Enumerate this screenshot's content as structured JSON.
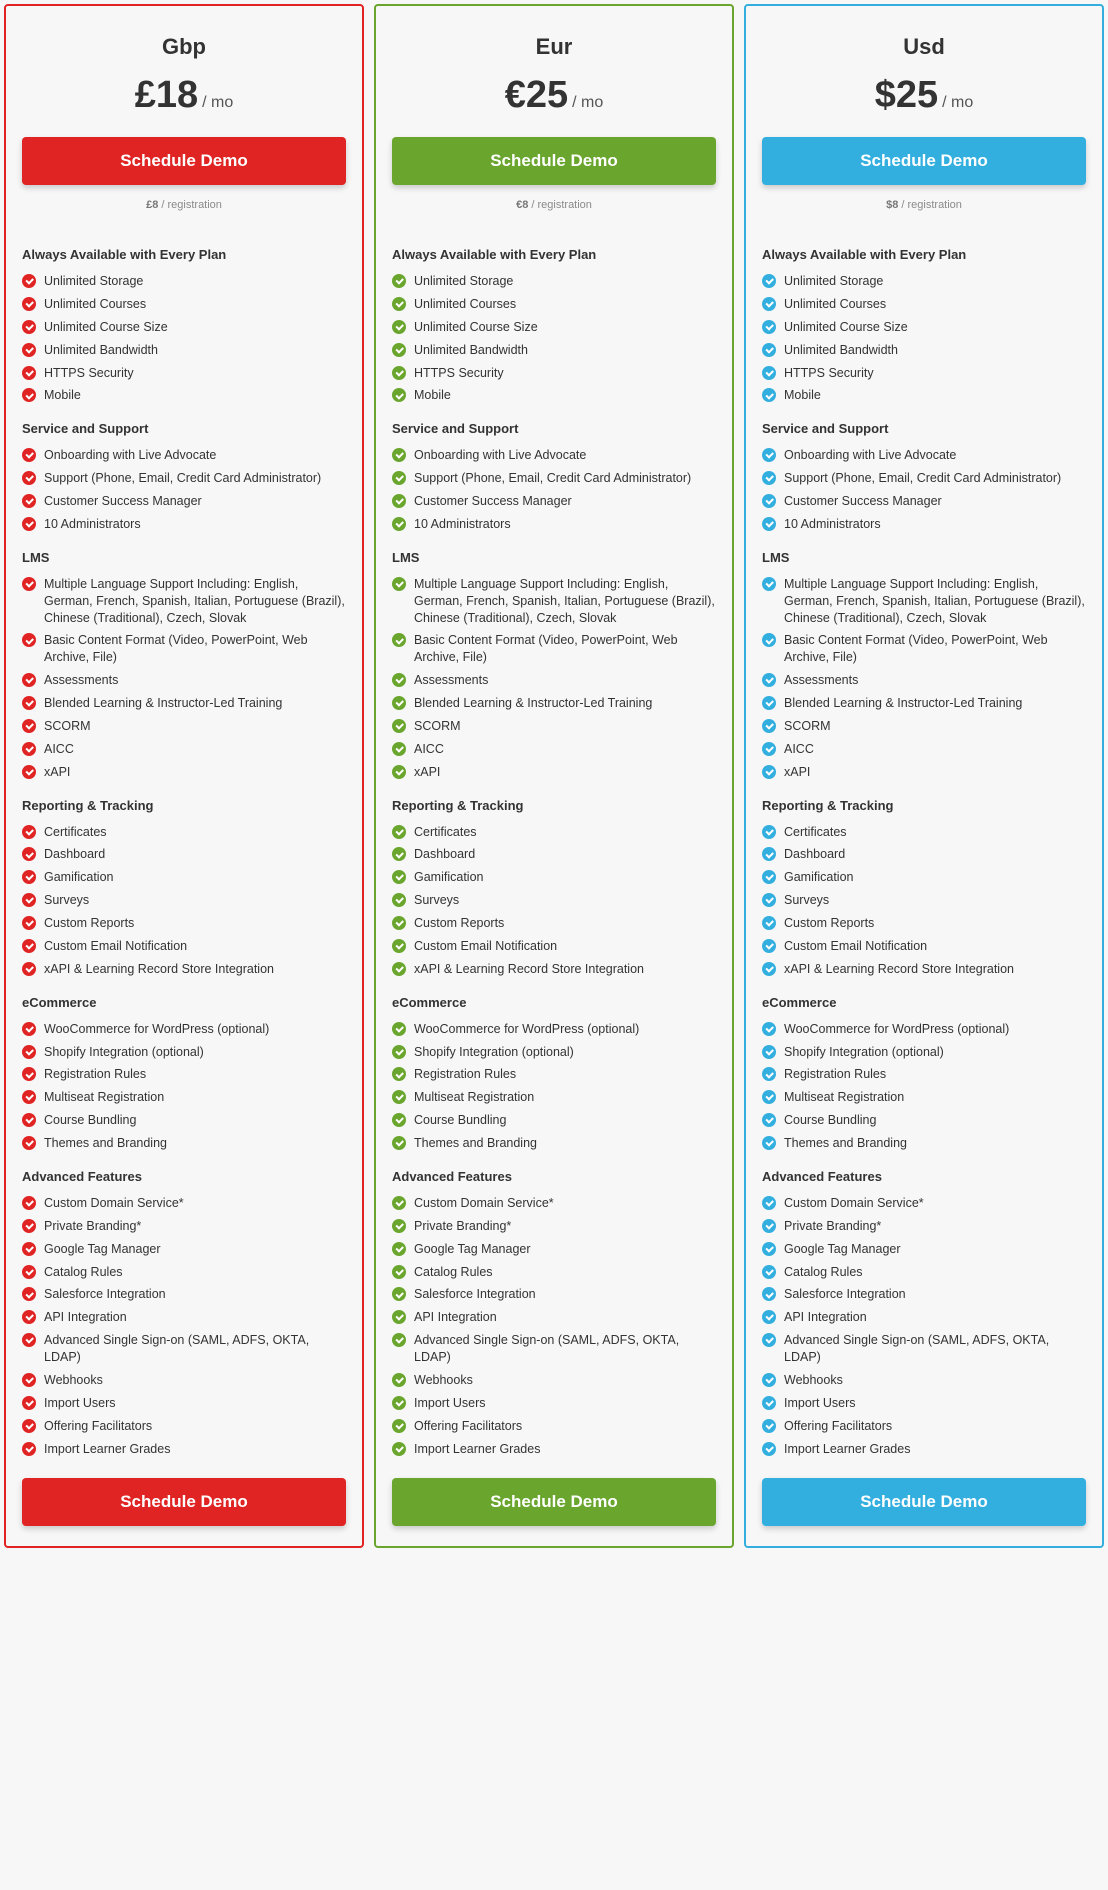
{
  "page_bg": "#f7f7f7",
  "card_bg": "#f7f7f7",
  "text_color": "#333333",
  "muted_color": "#8a8a8a",
  "plans": [
    {
      "title": "Gbp",
      "accent": "#e02424",
      "price": "£18",
      "per": "/ mo",
      "cta": "Schedule Demo",
      "reg_price": "£8",
      "reg_label": "/ registration"
    },
    {
      "title": "Eur",
      "accent": "#6aa62e",
      "price": "€25",
      "per": "/ mo",
      "cta": "Schedule Demo",
      "reg_price": "€8",
      "reg_label": "/ registration"
    },
    {
      "title": "Usd",
      "accent": "#33afdf",
      "price": "$25",
      "per": "/ mo",
      "cta": "Schedule Demo",
      "reg_price": "$8",
      "reg_label": "/ registration"
    }
  ],
  "sections": [
    {
      "title": "Always Available with Every Plan",
      "items": [
        "Unlimited Storage",
        "Unlimited Courses",
        "Unlimited Course Size",
        "Unlimited Bandwidth",
        "HTTPS Security",
        "Mobile"
      ]
    },
    {
      "title": "Service and Support",
      "items": [
        "Onboarding with Live Advocate",
        "Support (Phone, Email, Credit Card Administrator)",
        "Customer Success Manager",
        "10 Administrators"
      ]
    },
    {
      "title": "LMS",
      "items": [
        "Multiple Language Support Including: English, German, French, Spanish, Italian, Portuguese (Brazil), Chinese (Traditional), Czech, Slovak",
        "Basic Content Format (Video, PowerPoint, Web Archive, File)",
        "Assessments",
        "Blended Learning & Instructor-Led Training",
        "SCORM",
        "AICC",
        "xAPI"
      ]
    },
    {
      "title": "Reporting & Tracking",
      "items": [
        "Certificates",
        "Dashboard",
        "Gamification",
        "Surveys",
        "Custom Reports",
        "Custom Email Notification",
        "xAPI & Learning Record Store Integration"
      ]
    },
    {
      "title": "eCommerce",
      "items": [
        "WooCommerce for WordPress (optional)",
        "Shopify Integration (optional)",
        "Registration Rules",
        "Multiseat Registration",
        "Course Bundling",
        "Themes and Branding"
      ]
    },
    {
      "title": "Advanced Features",
      "items": [
        "Custom Domain Service*",
        "Private Branding*",
        "Google Tag Manager",
        "Catalog Rules",
        "Salesforce Integration",
        "API Integration",
        "Advanced Single Sign-on (SAML, ADFS, OKTA, LDAP)",
        "Webhooks",
        "Import Users",
        "Offering Facilitators",
        "Import Learner Grades"
      ]
    }
  ]
}
